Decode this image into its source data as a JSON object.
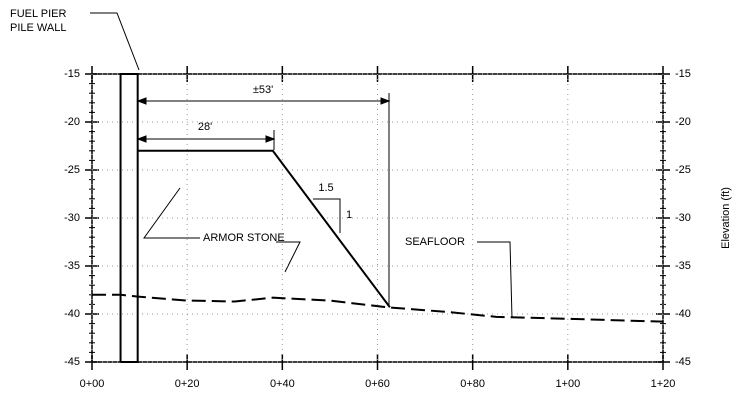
{
  "chart_data": {
    "type": "line",
    "xlim": [
      0,
      120
    ],
    "ylim": [
      -45,
      -15
    ],
    "xticks": [
      {
        "value": 0,
        "label": "0+00"
      },
      {
        "value": 20,
        "label": "0+20"
      },
      {
        "value": 40,
        "label": "0+40"
      },
      {
        "value": 60,
        "label": "0+60"
      },
      {
        "value": 80,
        "label": "0+80"
      },
      {
        "value": 100,
        "label": "1+00"
      },
      {
        "value": 120,
        "label": "1+20"
      }
    ],
    "yticks": [
      -15,
      -20,
      -25,
      -30,
      -35,
      -40,
      -45
    ],
    "y2label": "Elevation (ft)",
    "grid": true,
    "series": [
      {
        "color": "#000000",
        "style": "solid",
        "x": [
          6,
          6,
          9.6,
          9.6,
          6
        ],
        "values": [
          -45,
          -15,
          -15,
          -45,
          -45
        ]
      },
      {
        "color": "#000000",
        "style": "solid",
        "x": [
          9.6,
          38,
          62.6
        ],
        "values": [
          -23,
          -23,
          -39.3
        ]
      },
      {
        "color": "#000000",
        "style": "dashed",
        "x": [
          0,
          6,
          10,
          20,
          30,
          38,
          50,
          62,
          75,
          85,
          100,
          120
        ],
        "values": [
          -38,
          -38,
          -38.2,
          -38.6,
          -38.7,
          -38.3,
          -38.6,
          -39.3,
          -39.8,
          -40.3,
          -40.5,
          -40.8
        ]
      }
    ],
    "annotations": {
      "pile_wall": [
        "FUEL PIER",
        "PILE WALL"
      ],
      "armor_stone": "ARMOR STONE",
      "seafloor": "SEAFLOOR",
      "dim_total": "±53'",
      "dim_crest": "28'",
      "slope_run": "1.5",
      "slope_rise": "1"
    }
  }
}
